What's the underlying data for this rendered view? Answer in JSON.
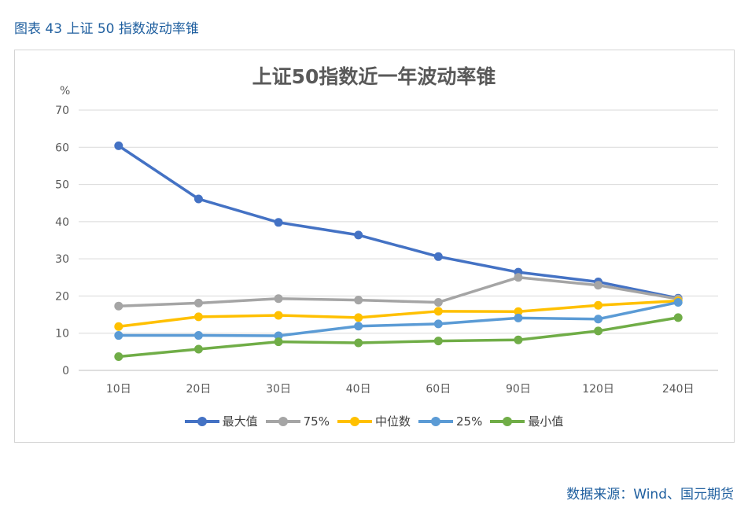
{
  "caption": "图表 43 上证 50 指数波动率锥",
  "source": "数据来源：Wind、国元期货",
  "chart_data": {
    "type": "line",
    "title": "上证50指数近一年波动率锥",
    "unit": "%",
    "categories": [
      "10日",
      "20日",
      "30日",
      "40日",
      "60日",
      "90日",
      "120日",
      "240日"
    ],
    "ylim": [
      0,
      70
    ],
    "yticks": [
      0,
      10,
      20,
      30,
      40,
      50,
      60,
      70
    ],
    "grid": true,
    "legend_position": "bottom",
    "series": [
      {
        "name": "最大值",
        "color": "#4472c4",
        "values": [
          60.4,
          46.1,
          39.8,
          36.4,
          30.6,
          26.4,
          23.8,
          19.4
        ]
      },
      {
        "name": "75%",
        "color": "#a5a5a5",
        "values": [
          17.3,
          18.1,
          19.3,
          18.9,
          18.3,
          25.0,
          22.9,
          19.2
        ]
      },
      {
        "name": "中位数",
        "color": "#ffc000",
        "values": [
          11.8,
          14.4,
          14.8,
          14.2,
          15.9,
          15.8,
          17.5,
          18.7
        ]
      },
      {
        "name": "25%",
        "color": "#5b9bd5",
        "values": [
          9.4,
          9.4,
          9.3,
          11.9,
          12.5,
          14.1,
          13.8,
          18.3
        ]
      },
      {
        "name": "最小值",
        "color": "#70ad47",
        "values": [
          3.7,
          5.7,
          7.7,
          7.4,
          7.9,
          8.2,
          10.6,
          14.2
        ]
      }
    ]
  }
}
